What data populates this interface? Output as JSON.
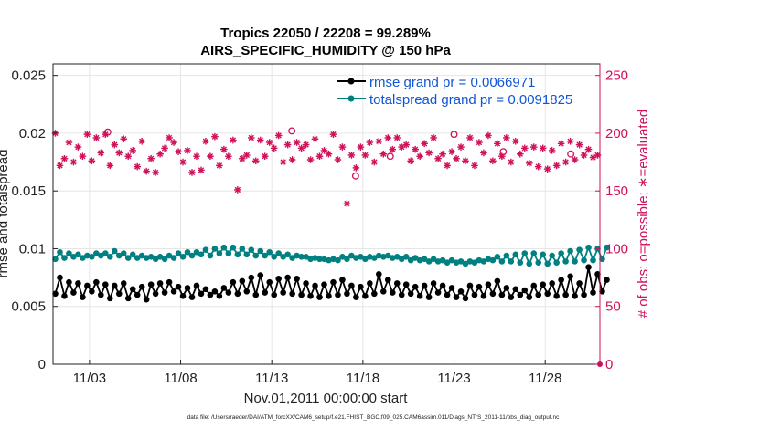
{
  "chart_data": {
    "type": "line",
    "title_line1": "Tropics 22050 / 22208 = 99.289%",
    "title_line2": "AIRS_SPECIFIC_HUMIDITY @ 150 hPa",
    "xlabel": "Nov.01,2011 00:00:00 start",
    "ylabel_left": "rmse and totalspread",
    "ylabel_right": "# of obs: o=possible; ∗=evaluated",
    "footnote": "data file: /Users/raeder/DAI/ATM_forcXX/CAM6_setup/f.e21.FHIST_BGC.f09_025.CAM6assim.011/Diags_NTrS_2011-11/obs_diag_output.nc",
    "x_range_days": [
      1,
      31
    ],
    "x_ticks": [
      {
        "label": "11/03",
        "day": 3
      },
      {
        "label": "11/08",
        "day": 8
      },
      {
        "label": "11/13",
        "day": 13
      },
      {
        "label": "11/18",
        "day": 18
      },
      {
        "label": "11/23",
        "day": 23
      },
      {
        "label": "11/28",
        "day": 28
      }
    ],
    "y_left": {
      "range": [
        0,
        0.026
      ],
      "ticks": [
        "0",
        "0.005",
        "0.01",
        "0.015",
        "0.02",
        "0.025"
      ],
      "tick_values": [
        0,
        0.005,
        0.01,
        0.015,
        0.02,
        0.025
      ]
    },
    "y_right": {
      "range": [
        0,
        260
      ],
      "ticks": [
        "0",
        "50",
        "100",
        "150",
        "200",
        "250"
      ],
      "tick_values": [
        0,
        50,
        100,
        150,
        200,
        250
      ]
    },
    "legend": [
      {
        "label": "rmse grand pr = 0.0066971",
        "color": "#000000"
      },
      {
        "label": "totalspread grand pr = 0.0091825",
        "color": "#008080"
      }
    ],
    "series": [
      {
        "name": "rmse",
        "color": "#000000",
        "marker": "circle",
        "day_start": 1.125,
        "day_step": 0.25,
        "values": [
          0.0061,
          0.0075,
          0.0059,
          0.0071,
          0.0062,
          0.007,
          0.0058,
          0.0068,
          0.0063,
          0.0071,
          0.006,
          0.0069,
          0.0057,
          0.0068,
          0.0061,
          0.007,
          0.0057,
          0.0065,
          0.006,
          0.0067,
          0.0056,
          0.0069,
          0.0061,
          0.007,
          0.0062,
          0.0071,
          0.0063,
          0.0067,
          0.0059,
          0.0066,
          0.0058,
          0.0068,
          0.0061,
          0.0065,
          0.006,
          0.0063,
          0.0059,
          0.0066,
          0.0062,
          0.0071,
          0.0061,
          0.0072,
          0.0063,
          0.0075,
          0.006,
          0.0077,
          0.0062,
          0.0071,
          0.006,
          0.0074,
          0.0062,
          0.0075,
          0.0061,
          0.0074,
          0.006,
          0.007,
          0.0059,
          0.0068,
          0.0058,
          0.0069,
          0.0059,
          0.0071,
          0.006,
          0.0073,
          0.0061,
          0.0068,
          0.0058,
          0.0067,
          0.0059,
          0.007,
          0.0061,
          0.0078,
          0.0063,
          0.0073,
          0.0062,
          0.007,
          0.006,
          0.0069,
          0.0061,
          0.0067,
          0.0059,
          0.0068,
          0.0058,
          0.007,
          0.0062,
          0.0068,
          0.006,
          0.0066,
          0.0058,
          0.0063,
          0.0057,
          0.0068,
          0.006,
          0.0067,
          0.0059,
          0.0069,
          0.0061,
          0.0072,
          0.006,
          0.0066,
          0.0058,
          0.0065,
          0.006,
          0.0064,
          0.0058,
          0.0068,
          0.006,
          0.0069,
          0.0061,
          0.007,
          0.0059,
          0.0073,
          0.006,
          0.0076,
          0.0059,
          0.007,
          0.006,
          0.0084,
          0.0062,
          0.0078,
          0.0063,
          0.0073
        ]
      },
      {
        "name": "totalspread",
        "color": "#008080",
        "marker": "circle",
        "day_start": 1.125,
        "day_step": 0.25,
        "values": [
          0.0091,
          0.0097,
          0.0092,
          0.0096,
          0.0093,
          0.0095,
          0.0092,
          0.0094,
          0.0093,
          0.0096,
          0.0094,
          0.0096,
          0.0093,
          0.0098,
          0.0094,
          0.0096,
          0.0092,
          0.0095,
          0.0092,
          0.0094,
          0.0092,
          0.0093,
          0.0091,
          0.0093,
          0.0091,
          0.0094,
          0.0092,
          0.0096,
          0.0093,
          0.0097,
          0.0094,
          0.0097,
          0.0095,
          0.0099,
          0.0094,
          0.01,
          0.0096,
          0.0101,
          0.0096,
          0.0101,
          0.0095,
          0.01,
          0.0095,
          0.0099,
          0.0094,
          0.0098,
          0.0094,
          0.0097,
          0.0093,
          0.0096,
          0.0093,
          0.0095,
          0.0092,
          0.0094,
          0.0093,
          0.0093,
          0.0091,
          0.0092,
          0.0091,
          0.0091,
          0.009,
          0.0091,
          0.009,
          0.0093,
          0.0091,
          0.0094,
          0.0092,
          0.0093,
          0.0091,
          0.0093,
          0.0092,
          0.0094,
          0.0093,
          0.0094,
          0.0092,
          0.0093,
          0.0091,
          0.0093,
          0.009,
          0.0092,
          0.009,
          0.0091,
          0.0089,
          0.0091,
          0.0089,
          0.009,
          0.0088,
          0.009,
          0.0088,
          0.0089,
          0.0087,
          0.0089,
          0.0088,
          0.009,
          0.0089,
          0.0091,
          0.009,
          0.0093,
          0.0089,
          0.0094,
          0.0089,
          0.0095,
          0.0088,
          0.0096,
          0.0087,
          0.0096,
          0.0088,
          0.0095,
          0.0087,
          0.0094,
          0.0088,
          0.0096,
          0.0089,
          0.0098,
          0.0089,
          0.0099,
          0.009,
          0.0101,
          0.009,
          0.01,
          0.0091,
          0.0101
        ]
      },
      {
        "name": "obs evaluated",
        "color": "#d0115a",
        "marker": "asterisk",
        "axis": "right",
        "day_start": 1.125,
        "day_step": 0.25,
        "values": [
          200,
          172,
          178,
          192,
          175,
          188,
          180,
          199,
          176,
          196,
          183,
          199,
          172,
          190,
          183,
          195,
          180,
          185,
          171,
          193,
          167,
          178,
          166,
          182,
          187,
          196,
          192,
          184,
          175,
          185,
          166,
          180,
          168,
          193,
          180,
          197,
          172,
          186,
          180,
          194,
          151,
          178,
          181,
          196,
          176,
          194,
          180,
          192,
          187,
          198,
          175,
          190,
          177,
          192,
          187,
          190,
          177,
          195,
          180,
          185,
          182,
          199,
          177,
          188,
          139,
          181,
          170,
          188,
          181,
          192,
          175,
          193,
          182,
          196,
          186,
          196,
          188,
          190,
          176,
          186,
          180,
          191,
          183,
          196,
          178,
          182,
          172,
          184,
          178,
          188,
          176,
          196,
          172,
          192,
          183,
          198,
          176,
          191,
          180,
          196,
          175,
          193,
          182,
          187,
          174,
          188,
          171,
          187,
          169,
          185,
          172,
          191,
          175,
          193,
          177,
          190,
          181,
          186,
          179,
          181
        ]
      },
      {
        "name": "obs possible",
        "color": "#d0115a",
        "marker": "open-circle",
        "axis": "right",
        "points": [
          [
            4.0,
            201
          ],
          [
            14.1,
            202
          ],
          [
            17.6,
            163
          ],
          [
            19.5,
            180
          ],
          [
            23.0,
            199
          ],
          [
            25.7,
            184
          ],
          [
            29.4,
            182
          ]
        ]
      }
    ]
  }
}
